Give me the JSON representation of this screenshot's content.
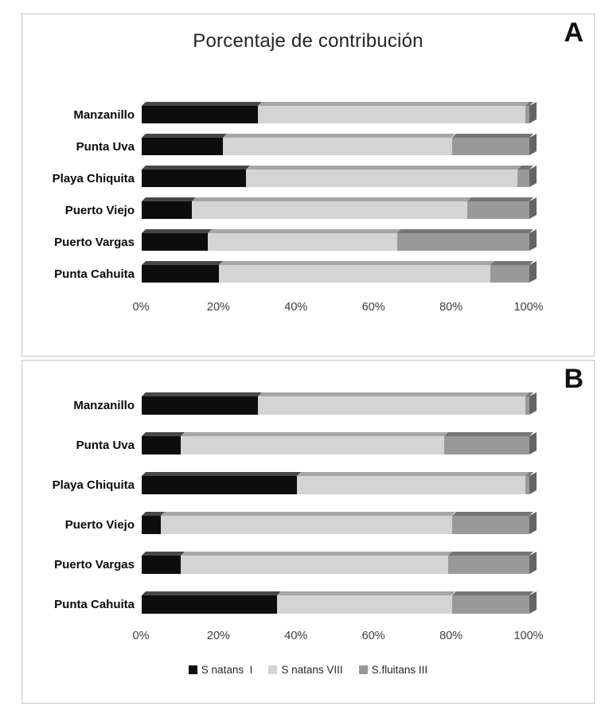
{
  "figure": {
    "panel_labels": [
      "A",
      "B"
    ]
  },
  "legend": {
    "items": [
      {
        "label": "S natans  I"
      },
      {
        "label": "S natans VIII"
      },
      {
        "label": "S.fluitans III"
      }
    ]
  },
  "chart_data": [
    {
      "type": "bar",
      "orientation": "horizontal",
      "stacked": true,
      "panel": "A",
      "title": "Porcentaje de contribución",
      "categories": [
        "Manzanillo",
        "Punta Uva",
        "Playa Chiquita",
        "Puerto Viejo",
        "Puerto Vargas",
        "Punta Cahuita"
      ],
      "series": [
        {
          "name": "S natans I",
          "color": "#0d0d0d",
          "bevel": "#474747",
          "cap": "#3a3a3a",
          "values": [
            30,
            21,
            27,
            13,
            17,
            20
          ]
        },
        {
          "name": "S natans VIII",
          "color": "#d4d4d4",
          "bevel": "#a6a6a6",
          "cap": "#8f8f8f",
          "values": [
            69,
            59,
            70,
            71,
            49,
            70
          ]
        },
        {
          "name": "S.fluitans III",
          "color": "#999999",
          "bevel": "#757575",
          "cap": "#646464",
          "values": [
            1,
            20,
            3,
            16,
            34,
            10
          ]
        }
      ],
      "x_ticks": [
        "0%",
        "20%",
        "40%",
        "60%",
        "80%",
        "100%"
      ],
      "xlim": [
        0,
        100
      ],
      "grid": false,
      "legend_position": "none"
    },
    {
      "type": "bar",
      "orientation": "horizontal",
      "stacked": true,
      "panel": "B",
      "title": "",
      "categories": [
        "Manzanillo",
        "Punta Uva",
        "Playa Chiquita",
        "Puerto Viejo",
        "Puerto Vargas",
        "Punta Cahuita"
      ],
      "series": [
        {
          "name": "S natans I",
          "color": "#0d0d0d",
          "bevel": "#474747",
          "cap": "#3a3a3a",
          "values": [
            30,
            10,
            40,
            5,
            10,
            35
          ]
        },
        {
          "name": "S natans VIII",
          "color": "#d4d4d4",
          "bevel": "#a6a6a6",
          "cap": "#8f8f8f",
          "values": [
            69,
            68,
            59,
            75,
            69,
            45
          ]
        },
        {
          "name": "S.fluitans III",
          "color": "#999999",
          "bevel": "#757575",
          "cap": "#646464",
          "values": [
            1,
            22,
            1,
            20,
            21,
            20
          ]
        }
      ],
      "x_ticks": [
        "0%",
        "20%",
        "40%",
        "60%",
        "80%",
        "100%"
      ],
      "xlim": [
        0,
        100
      ],
      "grid": false,
      "legend_position": "bottom"
    }
  ]
}
